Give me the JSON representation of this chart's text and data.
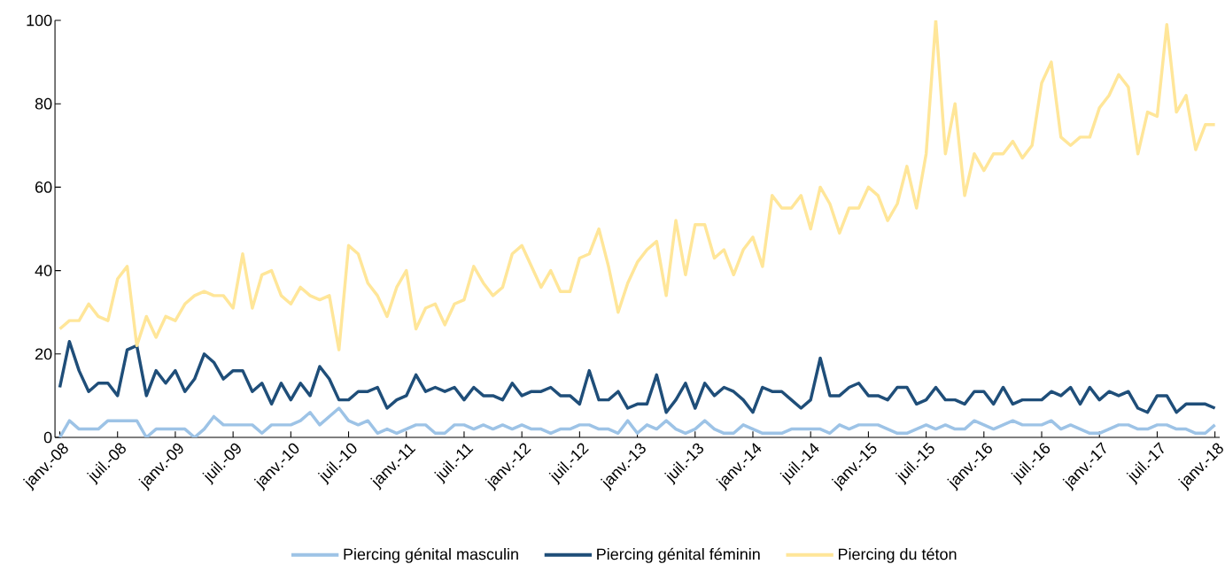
{
  "chart_data": {
    "type": "line",
    "categories": [
      "janv.-08",
      null,
      null,
      null,
      null,
      null,
      "juil.-08",
      null,
      null,
      null,
      null,
      null,
      "janv.-09",
      null,
      null,
      null,
      null,
      null,
      "juil.-09",
      null,
      null,
      null,
      null,
      null,
      "janv.-10",
      null,
      null,
      null,
      null,
      null,
      "juil.-10",
      null,
      null,
      null,
      null,
      null,
      "janv.-11",
      null,
      null,
      null,
      null,
      null,
      "juil.-11",
      null,
      null,
      null,
      null,
      null,
      "janv.-12",
      null,
      null,
      null,
      null,
      null,
      "juil.-12",
      null,
      null,
      null,
      null,
      null,
      "janv.-13",
      null,
      null,
      null,
      null,
      null,
      "juil.-13",
      null,
      null,
      null,
      null,
      null,
      "janv.-14",
      null,
      null,
      null,
      null,
      null,
      "juil.-14",
      null,
      null,
      null,
      null,
      null,
      "janv.-15",
      null,
      null,
      null,
      null,
      null,
      "juil.-15",
      null,
      null,
      null,
      null,
      null,
      "janv.-16",
      null,
      null,
      null,
      null,
      null,
      "juil.-16",
      null,
      null,
      null,
      null,
      null,
      "janv.-17",
      null,
      null,
      null,
      null,
      null,
      "juil.-17",
      null,
      null,
      null,
      null,
      null,
      "janv.-18"
    ],
    "series": [
      {
        "name": "Piercing génital masculin",
        "color": "#9dc3e6",
        "values": [
          0,
          4,
          2,
          2,
          2,
          4,
          4,
          4,
          4,
          0,
          2,
          2,
          2,
          2,
          0,
          2,
          5,
          3,
          3,
          3,
          3,
          1,
          3,
          3,
          3,
          4,
          6,
          3,
          5,
          7,
          4,
          3,
          4,
          1,
          2,
          1,
          2,
          3,
          3,
          1,
          1,
          3,
          3,
          2,
          3,
          2,
          3,
          2,
          3,
          2,
          2,
          1,
          2,
          2,
          3,
          3,
          2,
          2,
          1,
          4,
          1,
          3,
          2,
          4,
          2,
          1,
          2,
          4,
          2,
          1,
          1,
          3,
          2,
          1,
          1,
          1,
          2,
          2,
          2,
          2,
          1,
          3,
          2,
          3,
          3,
          3,
          2,
          1,
          1,
          2,
          3,
          2,
          3,
          2,
          2,
          4,
          3,
          2,
          3,
          4,
          3,
          3,
          3,
          4,
          2,
          3,
          2,
          1,
          1,
          2,
          3,
          3,
          2,
          2,
          3,
          3,
          2,
          2,
          1,
          1,
          3
        ]
      },
      {
        "name": "Piercing génital féminin",
        "color": "#1f4e79",
        "values": [
          12,
          23,
          16,
          11,
          13,
          13,
          10,
          21,
          22,
          10,
          16,
          13,
          16,
          11,
          14,
          20,
          18,
          14,
          16,
          16,
          11,
          13,
          8,
          13,
          9,
          13,
          10,
          17,
          14,
          9,
          9,
          11,
          11,
          12,
          7,
          9,
          10,
          15,
          11,
          12,
          11,
          12,
          9,
          12,
          10,
          10,
          9,
          13,
          10,
          11,
          11,
          12,
          10,
          10,
          8,
          16,
          9,
          9,
          11,
          7,
          8,
          8,
          15,
          6,
          9,
          13,
          7,
          13,
          10,
          12,
          11,
          9,
          6,
          12,
          11,
          11,
          9,
          7,
          9,
          19,
          10,
          10,
          12,
          13,
          10,
          10,
          9,
          12,
          12,
          8,
          9,
          12,
          9,
          9,
          8,
          11,
          11,
          8,
          12,
          8,
          9,
          9,
          9,
          11,
          10,
          12,
          8,
          12,
          9,
          11,
          10,
          11,
          7,
          6,
          10,
          10,
          6,
          8,
          8,
          8,
          7
        ]
      },
      {
        "name": "Piercing du téton",
        "color": "#ffe699",
        "values": [
          26,
          28,
          28,
          32,
          29,
          28,
          38,
          41,
          22,
          29,
          24,
          29,
          28,
          32,
          34,
          35,
          34,
          34,
          31,
          44,
          31,
          39,
          40,
          34,
          32,
          36,
          34,
          33,
          34,
          21,
          46,
          44,
          37,
          34,
          29,
          36,
          40,
          26,
          31,
          32,
          27,
          32,
          33,
          41,
          37,
          34,
          36,
          44,
          46,
          41,
          36,
          40,
          35,
          35,
          43,
          44,
          50,
          41,
          30,
          37,
          42,
          45,
          47,
          34,
          52,
          39,
          51,
          51,
          43,
          45,
          39,
          45,
          48,
          41,
          58,
          55,
          55,
          58,
          50,
          60,
          56,
          49,
          55,
          55,
          60,
          58,
          52,
          56,
          65,
          55,
          68,
          100,
          68,
          80,
          58,
          68,
          64,
          68,
          68,
          71,
          67,
          70,
          85,
          90,
          72,
          70,
          72,
          72,
          79,
          82,
          87,
          84,
          68,
          78,
          77,
          99,
          78,
          82,
          69,
          75,
          75
        ]
      }
    ],
    "ylim": [
      0,
      100
    ],
    "yticks": [
      0,
      20,
      40,
      60,
      80,
      100
    ],
    "legend": "bottom"
  }
}
